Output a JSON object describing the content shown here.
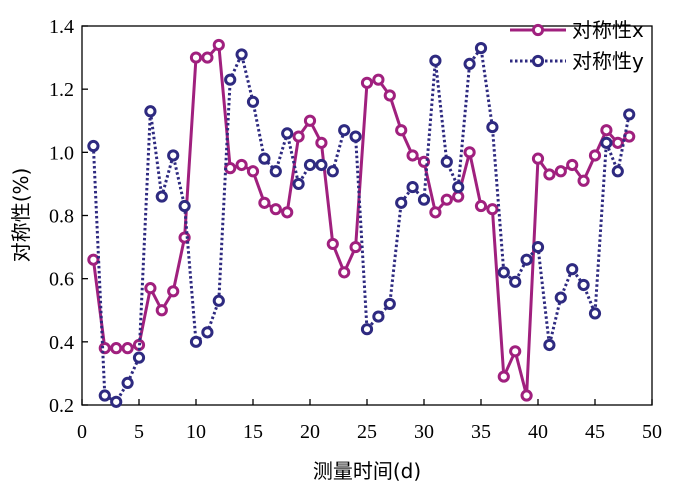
{
  "chart_data": {
    "type": "line",
    "title": "",
    "xlabel": "测量时间(d)",
    "ylabel": "对称性(%)",
    "xlim": [
      0,
      50
    ],
    "ylim": [
      0.2,
      1.4
    ],
    "xticks": [
      "0",
      "5",
      "10",
      "15",
      "20",
      "25",
      "30",
      "35",
      "40",
      "45",
      "50"
    ],
    "yticks": [
      "0.2",
      "0.4",
      "0.6",
      "0.8",
      "1.0",
      "1.2",
      "1.4"
    ],
    "grid": false,
    "legend_position": "top-right",
    "x": [
      1,
      2,
      3,
      4,
      5,
      6,
      7,
      8,
      9,
      10,
      11,
      12,
      13,
      14,
      15,
      16,
      17,
      18,
      19,
      20,
      21,
      22,
      23,
      24,
      25,
      26,
      27,
      28,
      29,
      30,
      31,
      32,
      33,
      34,
      35,
      36,
      37,
      38,
      39,
      40,
      41,
      42,
      43,
      44,
      45,
      46,
      47,
      48
    ],
    "series": [
      {
        "name": "对称性x",
        "color": "#a0207e",
        "style": "solid",
        "values": [
          0.66,
          0.38,
          0.38,
          0.38,
          0.39,
          0.57,
          0.5,
          0.56,
          0.73,
          1.3,
          1.3,
          1.34,
          0.95,
          0.96,
          0.94,
          0.84,
          0.82,
          0.81,
          1.05,
          1.1,
          1.03,
          0.71,
          0.62,
          0.7,
          1.22,
          1.23,
          1.18,
          1.07,
          0.99,
          0.97,
          0.81,
          0.85,
          0.86,
          1.0,
          0.83,
          0.82,
          0.29,
          0.37,
          0.23,
          0.98,
          0.93,
          0.94,
          0.96,
          0.91,
          0.99,
          1.07,
          1.03,
          1.05
        ]
      },
      {
        "name": "对称性y",
        "color": "#2e2a80",
        "style": "dotted",
        "values": [
          1.02,
          0.23,
          0.21,
          0.27,
          0.35,
          1.13,
          0.86,
          0.99,
          0.83,
          0.4,
          0.43,
          0.53,
          1.23,
          1.31,
          1.16,
          0.98,
          0.94,
          1.06,
          0.9,
          0.96,
          0.96,
          0.94,
          1.07,
          1.05,
          0.44,
          0.48,
          0.52,
          0.84,
          0.89,
          0.85,
          1.29,
          0.97,
          0.89,
          1.28,
          1.33,
          1.08,
          0.62,
          0.59,
          0.66,
          0.7,
          0.39,
          0.54,
          0.63,
          0.58,
          0.49,
          1.03,
          0.94,
          1.12
        ]
      }
    ]
  }
}
